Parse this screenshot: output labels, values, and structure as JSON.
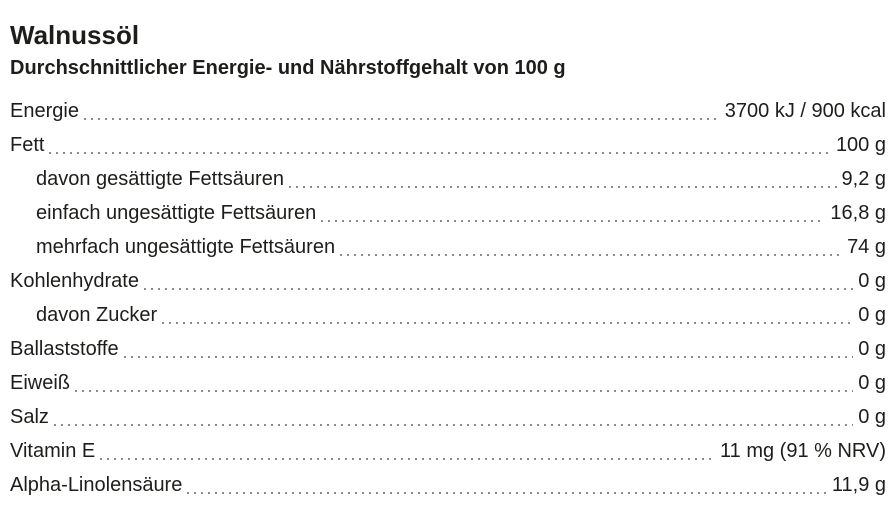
{
  "page": {
    "title": "Walnussöl",
    "subtitle": "Durchschnittlicher Energie- und Nährstoffgehalt von 100 g"
  },
  "table": {
    "rows": [
      {
        "label": "Energie",
        "value": "3700 kJ / 900 kcal",
        "indent": false
      },
      {
        "label": "Fett",
        "value": "100 g",
        "indent": false
      },
      {
        "label": "davon gesättigte Fettsäuren",
        "value": "9,2 g",
        "indent": true
      },
      {
        "label": "einfach ungesättigte Fettsäuren",
        "value": "16,8 g",
        "indent": true
      },
      {
        "label": "mehrfach ungesättigte Fettsäuren",
        "value": "74 g",
        "indent": true
      },
      {
        "label": "Kohlenhydrate",
        "value": "0 g",
        "indent": false
      },
      {
        "label": "davon Zucker",
        "value": "0 g",
        "indent": true
      },
      {
        "label": "Ballaststoffe",
        "value": "0 g",
        "indent": false
      },
      {
        "label": "Eiweiß",
        "value": "0 g",
        "indent": false
      },
      {
        "label": "Salz",
        "value": "0 g",
        "indent": false
      },
      {
        "label": "Vitamin E",
        "value": "11 mg (91 % NRV)",
        "indent": false
      },
      {
        "label": "Alpha-Linolensäure",
        "value": "11,9 g",
        "indent": false
      }
    ]
  },
  "colors": {
    "text": "#1d1d1b",
    "leader_dots": "#8c8c8c",
    "background": "#ffffff"
  }
}
